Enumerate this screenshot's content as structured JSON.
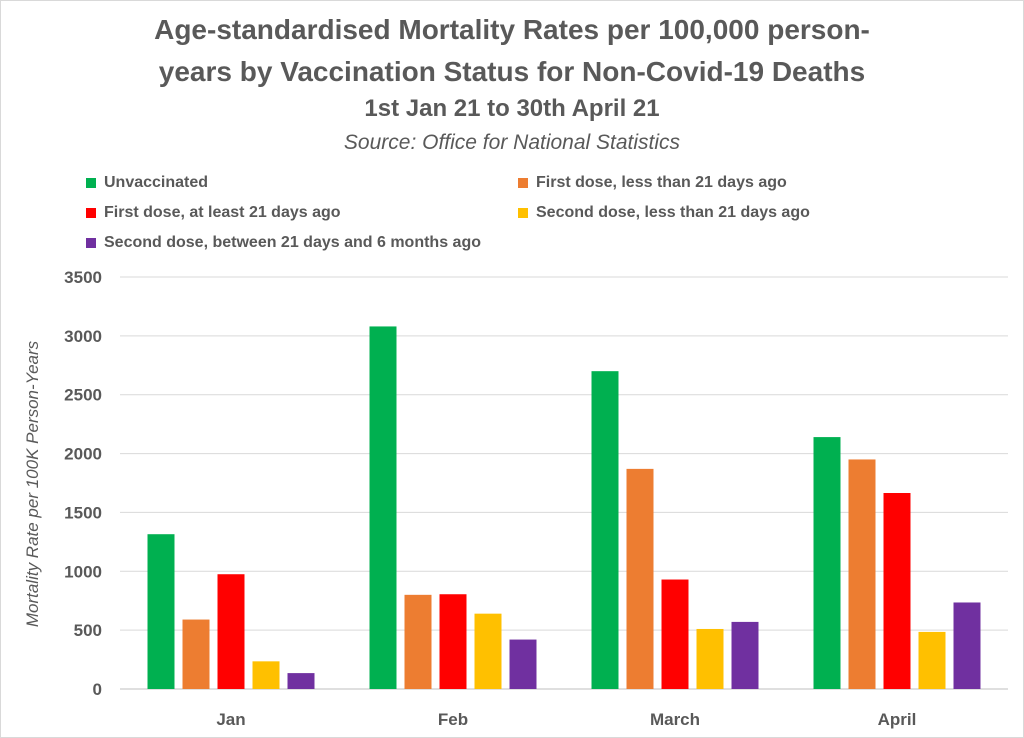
{
  "chart_data": {
    "type": "bar",
    "title_lines": [
      "Age-standardised Mortality Rates per 100,000 person-",
      "years by Vaccination Status for Non-Covid-19 Deaths"
    ],
    "subtitle": "1st Jan 21 to 30th April 21",
    "source": "Source: Office for National Statistics",
    "xlabel": "",
    "ylabel": "Mortality Rate per 100K Person-Years",
    "ylim": [
      0,
      3500
    ],
    "yticks": [
      0,
      500,
      1000,
      1500,
      2000,
      2500,
      3000,
      3500
    ],
    "grid": true,
    "legend_position": "top",
    "categories": [
      "Jan",
      "Feb",
      "March",
      "April"
    ],
    "series": [
      {
        "name": "Unvaccinated",
        "color": "#00b050",
        "values": [
          1315,
          3080,
          2700,
          2140
        ]
      },
      {
        "name": "First dose, less than 21 days ago",
        "color": "#ed7d31",
        "values": [
          590,
          800,
          1870,
          1950
        ]
      },
      {
        "name": "First dose, at least 21 days ago",
        "color": "#ff0000",
        "values": [
          975,
          805,
          930,
          1665
        ]
      },
      {
        "name": "Second dose, less than 21 days ago",
        "color": "#ffc000",
        "values": [
          235,
          640,
          510,
          485
        ]
      },
      {
        "name": "Second dose, between 21 days and 6 months ago",
        "color": "#7030a0",
        "values": [
          135,
          420,
          570,
          735
        ]
      }
    ]
  }
}
